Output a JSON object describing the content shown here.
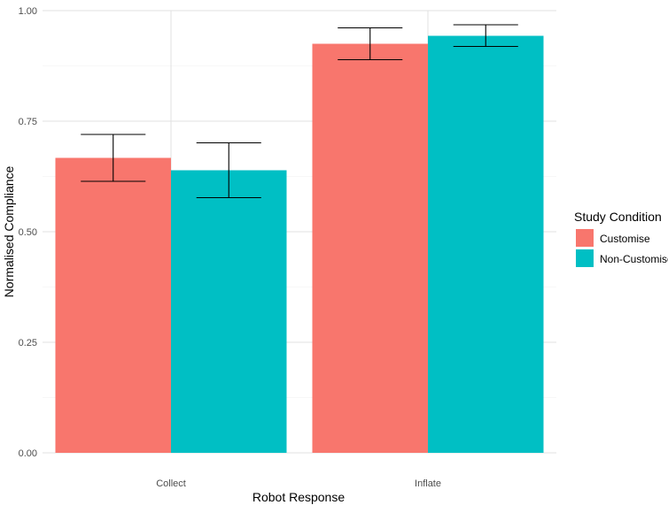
{
  "chart_data": {
    "type": "bar",
    "categories": [
      "Collect",
      "Inflate"
    ],
    "series": [
      {
        "name": "Customise",
        "values": [
          0.667,
          0.925
        ],
        "error_low": [
          0.614,
          0.889
        ],
        "error_high": [
          0.72,
          0.961
        ],
        "color": "#F8766D"
      },
      {
        "name": "Non-Customise",
        "values": [
          0.639,
          0.943
        ],
        "error_low": [
          0.577,
          0.919
        ],
        "error_high": [
          0.701,
          0.968
        ],
        "color": "#00BFC4"
      }
    ],
    "xlabel": "Robot Response",
    "ylabel": "Normalised Compliance",
    "ylim": [
      0,
      1
    ],
    "yticks": [
      "0.00",
      "0.25",
      "0.50",
      "0.75",
      "1.00"
    ],
    "legend_title": "Study Condition",
    "legend_position": "right",
    "grid": true
  }
}
